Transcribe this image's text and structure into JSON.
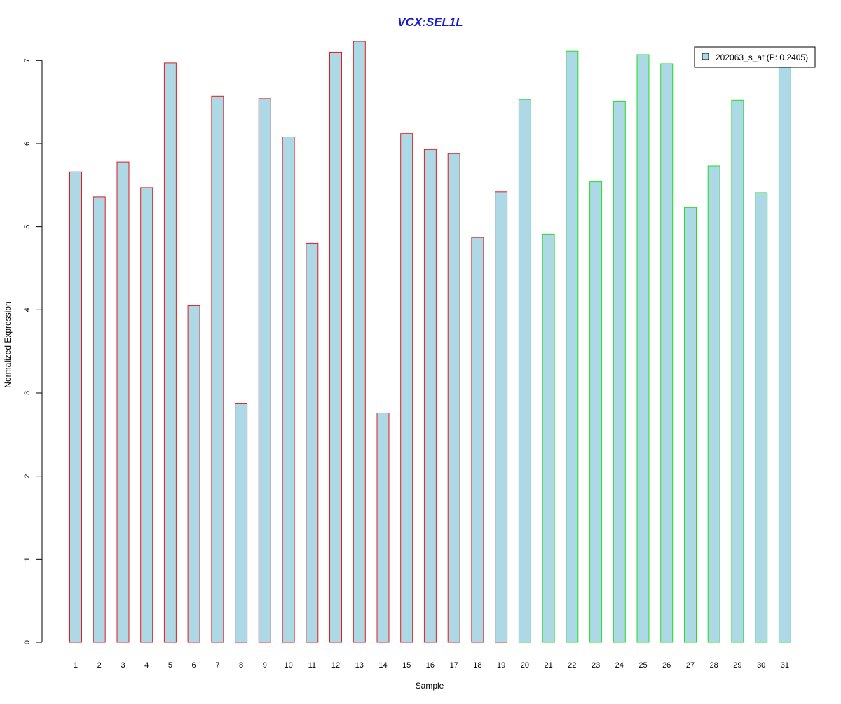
{
  "chart_data": {
    "type": "bar",
    "title": "VCX:SEL1L",
    "xlabel": "Sample",
    "ylabel": "Normalized Expression",
    "categories": [
      "1",
      "2",
      "3",
      "4",
      "5",
      "6",
      "7",
      "8",
      "9",
      "10",
      "11",
      "12",
      "13",
      "14",
      "15",
      "16",
      "17",
      "18",
      "19",
      "20",
      "21",
      "22",
      "23",
      "24",
      "25",
      "26",
      "27",
      "28",
      "29",
      "30",
      "31"
    ],
    "series": [
      {
        "name": "202063_s_at (P: 0.2405)",
        "values": [
          5.66,
          5.36,
          5.78,
          5.47,
          6.97,
          4.05,
          6.57,
          2.87,
          6.54,
          6.08,
          4.8,
          7.1,
          7.23,
          2.76,
          6.12,
          5.93,
          5.88,
          4.87,
          5.42,
          6.53,
          4.91,
          7.11,
          5.54,
          6.51,
          7.07,
          6.96,
          5.23,
          5.73,
          6.52,
          5.41,
          6.95
        ]
      }
    ],
    "group_index": [
      0,
      0,
      0,
      0,
      0,
      0,
      0,
      0,
      0,
      0,
      0,
      0,
      0,
      0,
      0,
      0,
      0,
      0,
      0,
      1,
      1,
      1,
      1,
      1,
      1,
      1,
      1,
      1,
      1,
      1,
      1
    ],
    "group_colors": [
      "#e31a1c",
      "#22dd22"
    ],
    "bar_fill": "#add8e6",
    "title_color": "#1a1acc",
    "yticks": [
      0,
      1,
      2,
      3,
      4,
      5,
      6,
      7
    ],
    "ylim": [
      0,
      7.23
    ],
    "grid": false,
    "legend_position": "top-right"
  }
}
